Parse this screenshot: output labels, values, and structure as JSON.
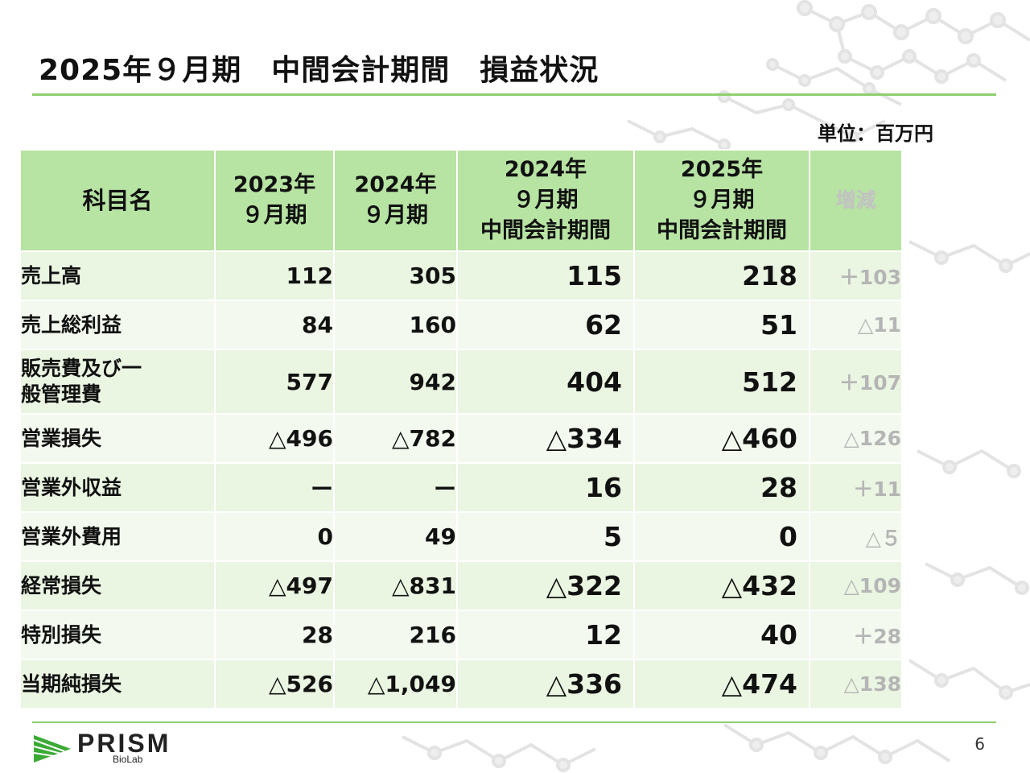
{
  "title": "2025年９月期　中間会計期間　損益状況",
  "unit": "単位：百万円",
  "table": {
    "headers": [
      [
        "科目名"
      ],
      [
        "2023年",
        "９月期"
      ],
      [
        "2024年",
        "９月期"
      ],
      [
        "2024年",
        "９月期",
        "中間会計期間"
      ],
      [
        "2025年",
        "９月期",
        "中間会計期間"
      ],
      [
        "増減"
      ]
    ],
    "rows": [
      {
        "item": [
          "売上高"
        ],
        "values": [
          "112",
          "305",
          "115",
          "218"
        ],
        "change": "＋103"
      },
      {
        "item": [
          "売上総利益"
        ],
        "values": [
          "84",
          "160",
          "62",
          "51"
        ],
        "change": "△11"
      },
      {
        "item": [
          "販売費及び一",
          "般管理費"
        ],
        "values": [
          "577",
          "942",
          "404",
          "512"
        ],
        "change": "＋107"
      },
      {
        "item": [
          "営業損失"
        ],
        "values": [
          "△496",
          "△782",
          "△334",
          "△460"
        ],
        "change": "△126"
      },
      {
        "item": [
          "営業外収益"
        ],
        "values": [
          "ー",
          "ー",
          "16",
          "28"
        ],
        "change": "＋11"
      },
      {
        "item": [
          "営業外費用"
        ],
        "values": [
          "0",
          "49",
          "5",
          "0"
        ],
        "change": "△５"
      },
      {
        "item": [
          "経常損失"
        ],
        "values": [
          "△497",
          "△831",
          "△322",
          "△432"
        ],
        "change": "△109"
      },
      {
        "item": [
          "特別損失"
        ],
        "values": [
          "28",
          "216",
          "12",
          "40"
        ],
        "change": "＋28"
      },
      {
        "item": [
          "当期純損失"
        ],
        "values": [
          "△526",
          "△1,049",
          "△336",
          "△474"
        ],
        "change": "△138"
      }
    ]
  },
  "footer": {
    "logo_text": "PRISM",
    "logo_subtext": "BioLab",
    "page_number": "6"
  },
  "colors": {
    "accent": "#8fcf6e",
    "header_fill": "#b7e3a3",
    "row_fill_odd": "#eaf5e2",
    "row_fill_even": "#f3f9ee",
    "change_text": "#b5b5b5"
  }
}
